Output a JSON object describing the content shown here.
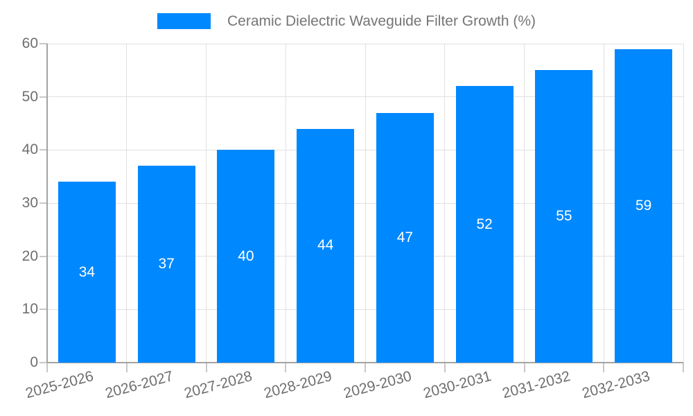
{
  "legend": {
    "label": "Ceramic Dielectric Waveguide Filter Growth (%)"
  },
  "chart_data": {
    "type": "bar",
    "title": "",
    "categories": [
      "2025-2026",
      "2026-2027",
      "2027-2028",
      "2028-2029",
      "2029-2030",
      "2030-2031",
      "2031-2032",
      "2032-2033"
    ],
    "series": [
      {
        "name": "Ceramic Dielectric Waveguide Filter Growth (%)",
        "values": [
          34,
          37,
          40,
          44,
          47,
          52,
          55,
          59
        ]
      }
    ],
    "xlabel": "",
    "ylabel": "",
    "ylim": [
      0,
      60
    ],
    "yticks": [
      0,
      10,
      20,
      30,
      40,
      50,
      60
    ],
    "grid": true,
    "legend_position": "top",
    "value_labels_position": "inside-center",
    "x_tick_rotation_deg": -15
  },
  "colors": {
    "bar": "#0088FE",
    "grid": "#e0e0e0",
    "axis_line": "#a3a3a3",
    "tick": "#c8c8c8",
    "axis_text": "#6e6e6e",
    "legend_text": "#757575",
    "value_label_text": "#ffffff",
    "background": "#ffffff"
  }
}
